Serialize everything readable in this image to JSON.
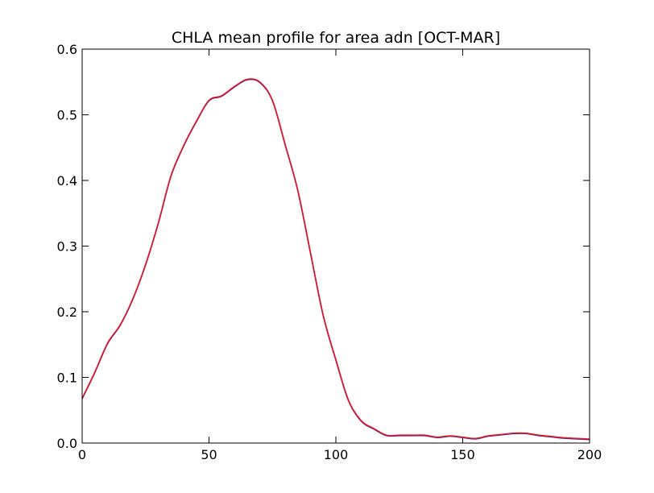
{
  "chart_data": {
    "type": "line",
    "title": "CHLA mean profile for area adn [OCT-MAR]",
    "xlabel": "",
    "ylabel": "",
    "xlim": [
      0,
      200
    ],
    "ylim": [
      0,
      0.6
    ],
    "x_ticks": [
      0,
      50,
      100,
      150,
      200
    ],
    "x_tick_labels": [
      "0",
      "50",
      "100",
      "150",
      "200"
    ],
    "y_ticks": [
      0.0,
      0.1,
      0.2,
      0.3,
      0.4,
      0.5,
      0.6
    ],
    "y_tick_labels": [
      "0.0",
      "0.1",
      "0.2",
      "0.3",
      "0.4",
      "0.5",
      "0.6"
    ],
    "grid": false,
    "legend": "none",
    "series": [
      {
        "color": "#e8101a",
        "underline_color": "#1f3fbf",
        "x": [
          0,
          5,
          10,
          15,
          20,
          25,
          30,
          35,
          40,
          45,
          50,
          55,
          60,
          65,
          70,
          75,
          80,
          85,
          90,
          95,
          100,
          105,
          110,
          115,
          120,
          125,
          130,
          135,
          140,
          145,
          150,
          155,
          160,
          165,
          170,
          175,
          180,
          185,
          190,
          195,
          200
        ],
        "y": [
          0.068,
          0.108,
          0.152,
          0.18,
          0.22,
          0.272,
          0.335,
          0.407,
          0.453,
          0.49,
          0.522,
          0.529,
          0.543,
          0.554,
          0.55,
          0.522,
          0.455,
          0.385,
          0.29,
          0.195,
          0.127,
          0.065,
          0.034,
          0.022,
          0.012,
          0.012,
          0.012,
          0.012,
          0.009,
          0.011,
          0.009,
          0.007,
          0.011,
          0.013,
          0.015,
          0.015,
          0.012,
          0.01,
          0.008,
          0.007,
          0.006
        ]
      }
    ]
  }
}
